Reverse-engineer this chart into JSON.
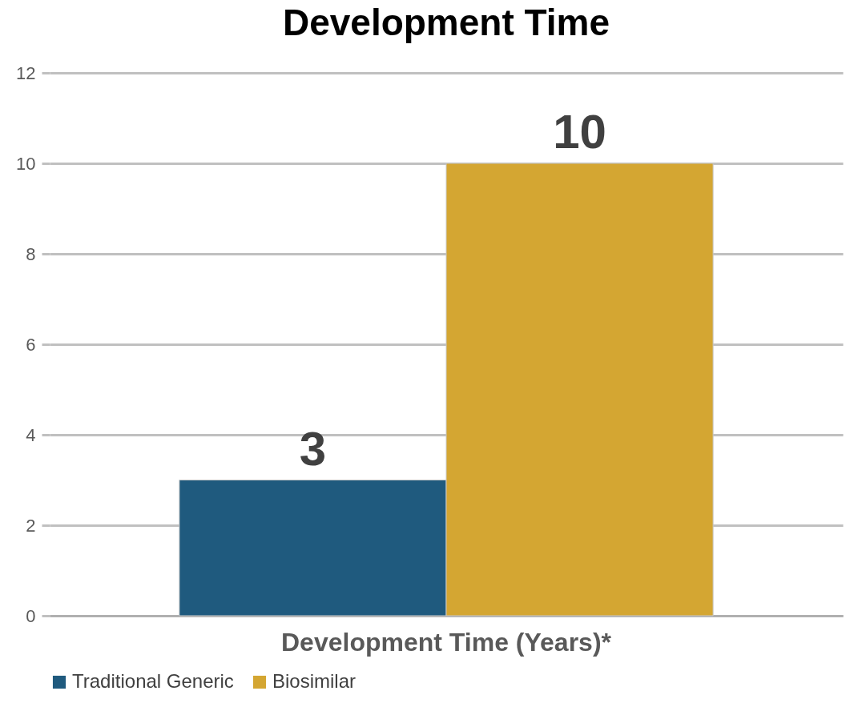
{
  "chart_data": {
    "type": "bar",
    "title": "Development Time",
    "categories": [
      "Development Time (Years)*"
    ],
    "series": [
      {
        "name": "Traditional Generic",
        "color": "#1f5a7e",
        "values": [
          3
        ]
      },
      {
        "name": "Biosimilar",
        "color": "#d4a632",
        "values": [
          10
        ]
      }
    ],
    "ylim": [
      0,
      12
    ],
    "yticks": [
      0,
      2,
      4,
      6,
      8,
      10,
      12
    ],
    "grid": "y",
    "legend": "bottom",
    "data_labels": true
  }
}
